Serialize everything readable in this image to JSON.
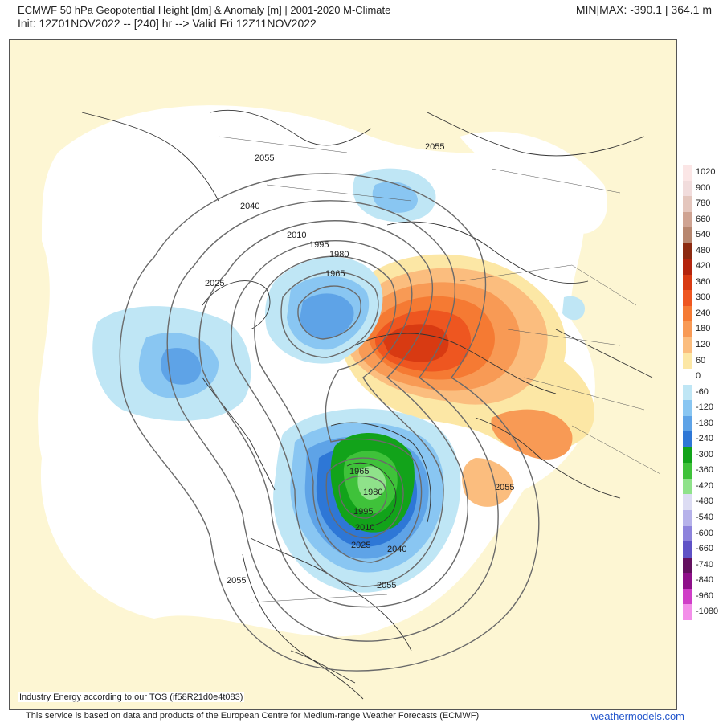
{
  "header": {
    "title": "ECMWF 50 hPa Geopotential Height [dm] & Anomaly [m] | 2001-2020 M-Climate",
    "init": "Init: 12Z01NOV2022 -- [240] hr --> Valid Fri 12Z11NOV2022",
    "minmax": "MIN|MAX: -390.1 | 364.1 m"
  },
  "legend": [
    {
      "label": "1020",
      "color": "#fbe6e6"
    },
    {
      "label": "900",
      "color": "#f1dcdc"
    },
    {
      "label": "780",
      "color": "#e4c6bd"
    },
    {
      "label": "660",
      "color": "#cfa392"
    },
    {
      "label": "540",
      "color": "#b7866f"
    },
    {
      "label": "480",
      "color": "#8c2a10"
    },
    {
      "label": "420",
      "color": "#b3240d"
    },
    {
      "label": "360",
      "color": "#d83a12"
    },
    {
      "label": "300",
      "color": "#ee5620"
    },
    {
      "label": "240",
      "color": "#f57a33"
    },
    {
      "label": "180",
      "color": "#f89a55"
    },
    {
      "label": "120",
      "color": "#fbbd7e"
    },
    {
      "label": "60",
      "color": "#fce7a5"
    },
    {
      "label": "0",
      "color": "#ffffff"
    },
    {
      "label": "-60",
      "color": "#bfe6f5"
    },
    {
      "label": "-120",
      "color": "#89c6f2"
    },
    {
      "label": "-180",
      "color": "#5ea3e7"
    },
    {
      "label": "-240",
      "color": "#2e77d6"
    },
    {
      "label": "-300",
      "color": "#12a31a"
    },
    {
      "label": "-360",
      "color": "#3fc23a"
    },
    {
      "label": "-420",
      "color": "#8fe28a"
    },
    {
      "label": "-480",
      "color": "#dcdcf3"
    },
    {
      "label": "-540",
      "color": "#b6b2ea"
    },
    {
      "label": "-600",
      "color": "#8d83dc"
    },
    {
      "label": "-660",
      "color": "#5f52c6"
    },
    {
      "label": "-740",
      "color": "#63105f"
    },
    {
      "label": "-840",
      "color": "#8e0f89"
    },
    {
      "label": "-960",
      "color": "#cf3ec7"
    },
    {
      "label": "-1080",
      "color": "#f38ee9"
    }
  ],
  "contours": [
    "1965",
    "1980",
    "1995",
    "2010",
    "2025",
    "2040",
    "2055"
  ],
  "tos": "Industry Energy according to our TOS (if58R21d0e4t083)",
  "footer": "This service is based on data and products of the European Centre for Medium-range Weather Forecasts (ECMWF)",
  "brand": "weathermodels.com"
}
